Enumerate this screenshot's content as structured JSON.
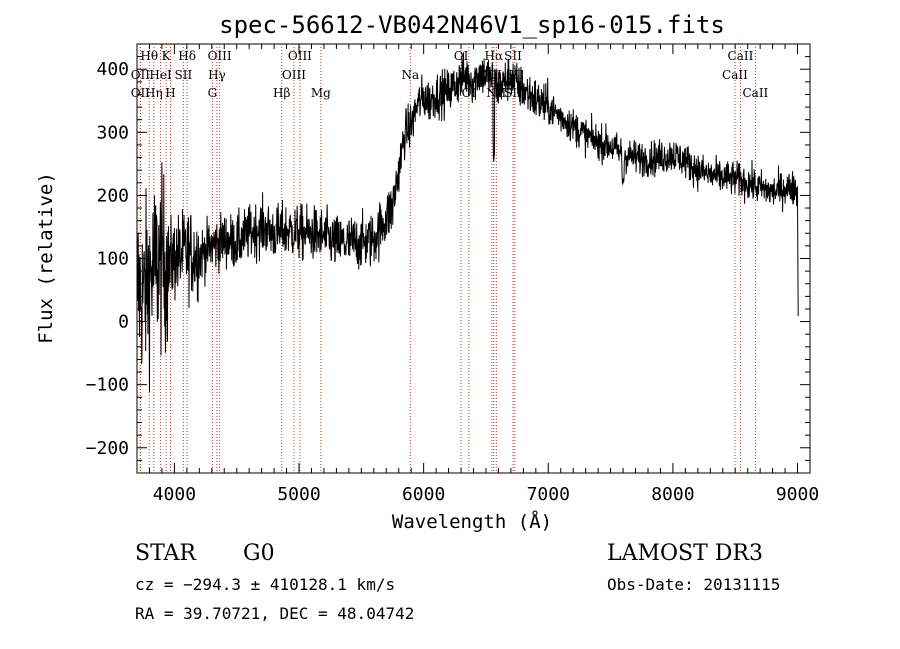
{
  "chart_data": {
    "type": "line",
    "title": "spec-56612-VB042N46V1_sp16-015.fits",
    "xlabel": "Wavelength (Å)",
    "ylabel": "Flux (relative)",
    "xlim": [
      3700,
      9100
    ],
    "ylim": [
      -240,
      440
    ],
    "x_ticks": [
      4000,
      5000,
      6000,
      7000,
      8000,
      9000
    ],
    "y_ticks": [
      -200,
      -100,
      0,
      100,
      200,
      300,
      400
    ],
    "grid": false,
    "series": [
      {
        "x": [
          3700,
          3750,
          3800,
          3850,
          3900,
          3950,
          4000,
          4100,
          4200,
          4300,
          4400,
          4500,
          4600,
          4700,
          4800,
          4900,
          5000,
          5100,
          5200,
          5300,
          5400,
          5500,
          5600,
          5700,
          5750,
          5800,
          5850,
          5900,
          5950,
          6000,
          6050,
          6100,
          6150,
          6200,
          6250,
          6300,
          6350,
          6400,
          6450,
          6500,
          6550,
          6600,
          6650,
          6700,
          6750,
          6800,
          6850,
          6900,
          6950,
          7000,
          7100,
          7200,
          7300,
          7400,
          7500,
          7600,
          7700,
          7800,
          7900,
          8000,
          8100,
          8200,
          8300,
          8400,
          8500,
          8600,
          8700,
          8800,
          8900,
          9000,
          9005
        ],
        "y": [
          60,
          40,
          70,
          90,
          95,
          90,
          100,
          110,
          105,
          120,
          130,
          125,
          140,
          150,
          140,
          145,
          140,
          140,
          135,
          125,
          125,
          125,
          130,
          165,
          180,
          240,
          300,
          310,
          345,
          355,
          350,
          360,
          362,
          365,
          375,
          385,
          390,
          380,
          395,
          390,
          385,
          370,
          380,
          390,
          375,
          368,
          360,
          352,
          345,
          340,
          325,
          310,
          295,
          285,
          278,
          265,
          260,
          258,
          260,
          265,
          255,
          240,
          232,
          228,
          226,
          220,
          212,
          205,
          212,
          210,
          10
        ]
      }
    ],
    "emission_lines": [
      {
        "label": "Hθ",
        "x": 3798,
        "row": 0
      },
      {
        "label": "OII",
        "x": 3727,
        "row": 1
      },
      {
        "label": "OII",
        "x": 3727,
        "row": 2
      },
      {
        "label": "Hη",
        "x": 3835,
        "row": 2
      },
      {
        "label": "K",
        "x": 3934,
        "row": 0
      },
      {
        "label": "HeI",
        "x": 3889,
        "row": 1
      },
      {
        "label": "H",
        "x": 3969,
        "row": 2
      },
      {
        "label": "SII",
        "x": 4072,
        "row": 1
      },
      {
        "label": "Hδ",
        "x": 4102,
        "row": 0
      },
      {
        "label": "OIII",
        "x": 4363,
        "row": 0
      },
      {
        "label": "Hγ",
        "x": 4341,
        "row": 1
      },
      {
        "label": "G",
        "x": 4305,
        "row": 2
      },
      {
        "label": "Hβ",
        "x": 4861,
        "row": 2
      },
      {
        "label": "OIII",
        "x": 5007,
        "row": 0
      },
      {
        "label": "OIII",
        "x": 4959,
        "row": 1
      },
      {
        "label": "Mg",
        "x": 5175,
        "row": 2
      },
      {
        "label": "Na",
        "x": 5893,
        "row": 1
      },
      {
        "label": "OI",
        "x": 6300,
        "row": 0
      },
      {
        "label": "OI",
        "x": 6363,
        "row": 2
      },
      {
        "label": "Hα",
        "x": 6563,
        "row": 0
      },
      {
        "label": "NII",
        "x": 6548,
        "row": 1
      },
      {
        "label": "NII",
        "x": 6583,
        "row": 2
      },
      {
        "label": "SII",
        "x": 6717,
        "row": 0
      },
      {
        "label": "SII",
        "x": 6731,
        "row": 1
      },
      {
        "label": "SII",
        "x": 6717,
        "row": 2
      },
      {
        "label": "CaII",
        "x": 8542,
        "row": 0
      },
      {
        "label": "CaII",
        "x": 8498,
        "row": 1
      },
      {
        "label": "CaII",
        "x": 8662,
        "row": 2
      }
    ]
  },
  "info": {
    "class": "STAR",
    "subclass": "G0",
    "survey": "LAMOST DR3",
    "velocity": "cz = −294.3 ± 410128.1 km/s",
    "obs_date": "Obs-Date: 20131115",
    "coords": "RA =  39.70721, DEC =  48.04742"
  }
}
